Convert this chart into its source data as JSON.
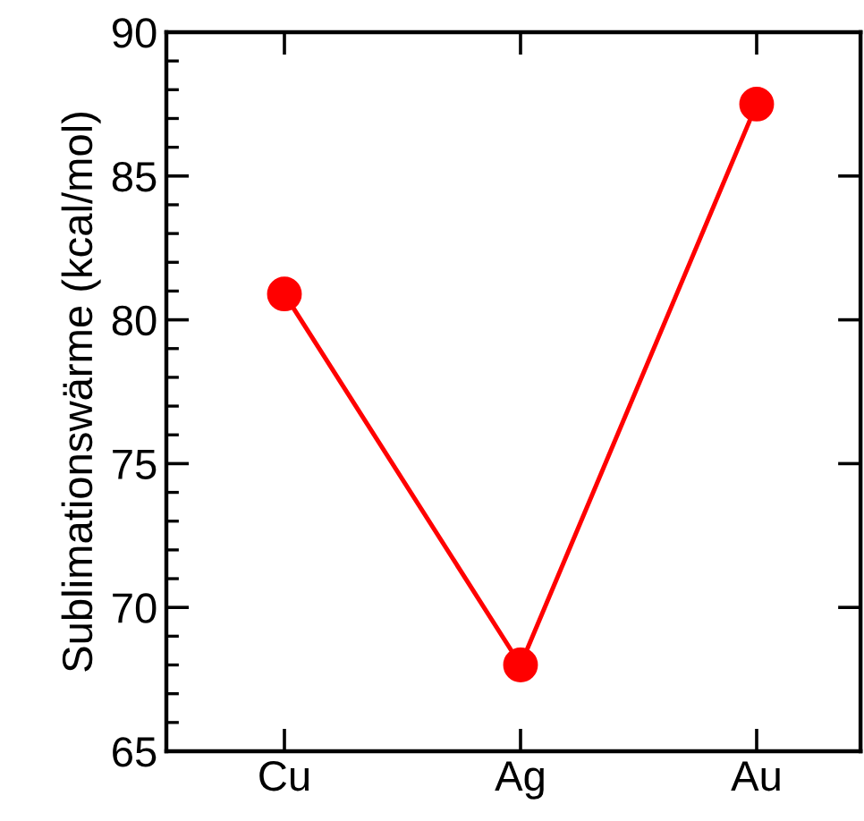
{
  "chart_data": {
    "type": "line",
    "ylabel": "Sublimationswärme (kcal/mol)",
    "categories": [
      "Cu",
      "Ag",
      "Au"
    ],
    "series": [
      {
        "color": "#ff0000",
        "values": [
          80.9,
          68.0,
          87.5
        ]
      }
    ],
    "ylim": [
      65,
      90
    ],
    "yticks": [
      65,
      70,
      75,
      80,
      85,
      90
    ],
    "marker": "circle",
    "line_style": "solid",
    "grid": false,
    "legend": false
  }
}
